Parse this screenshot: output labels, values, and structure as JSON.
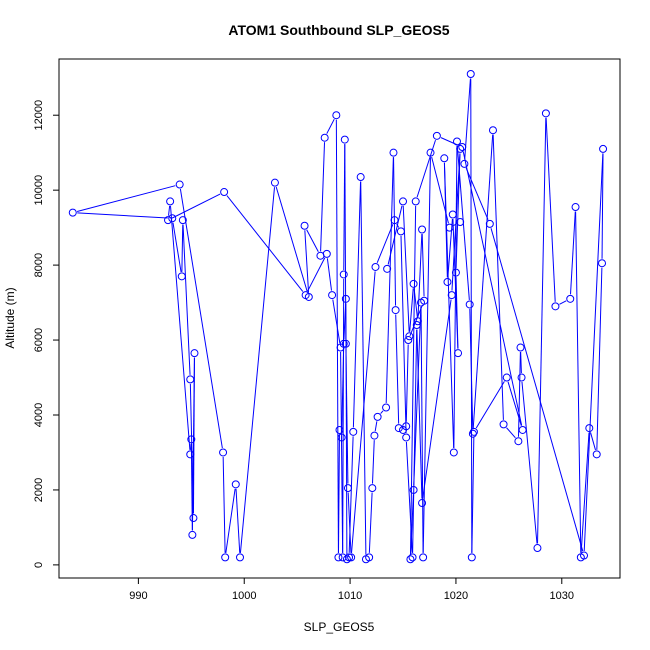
{
  "chart_data": {
    "type": "line",
    "title": "ATOM1 Southbound SLP_GEOS5",
    "xlabel": "SLP_GEOS5",
    "ylabel": "Altitude (m)",
    "xlim": [
      982.5,
      1035.5
    ],
    "ylim": [
      -350,
      13500
    ],
    "xticks": [
      990,
      1000,
      1010,
      1020,
      1030
    ],
    "yticks": [
      0,
      2000,
      4000,
      6000,
      8000,
      10000,
      12000
    ],
    "grid": false,
    "legend": "none",
    "series": [
      {
        "marker": "open-circle",
        "line": true,
        "color": "#0000ff",
        "x": [
          1013.5,
          1015.0,
          1015.6,
          1016.0,
          1016.4,
          1016.8,
          1017.0,
          1015.5,
          1015.3,
          1015.0,
          1014.6,
          1014.3,
          1014.1,
          1013.4,
          1012.6,
          1012.3,
          1012.1,
          1011.8,
          1011.5,
          1011.0,
          1010.3,
          1009.9,
          1009.7,
          1009.6,
          1009.4,
          1009.2,
          1009.0,
          1008.9,
          1008.7,
          1007.6,
          1007.2,
          1005.7,
          1006.1,
          1002.9,
          999.6,
          999.2,
          998.2,
          998.0,
          993.9,
          983.8,
          993.2,
          994.1,
          994.2,
          994.9,
          995.2,
          995.3,
          995.1,
          995.0,
          994.9,
          993.0,
          992.8,
          998.1,
          1005.8,
          1007.8,
          1008.3,
          1009.1,
          1009.3,
          1009.4,
          1009.5,
          1009.6,
          1009.8,
          1010.1,
          1012.4,
          1014.2,
          1014.8,
          1015.3,
          1015.9,
          1016.3,
          1016.8,
          1019.6,
          1020.4,
          1020.0,
          1020.2,
          1019.7,
          1019.2,
          1018.9,
          1019.8,
          1020.1,
          1021.3,
          1021.6,
          1023.5,
          1024.5,
          1025.9,
          1026.1,
          1026.2,
          1027.7,
          1028.5,
          1029.4,
          1030.8,
          1031.3,
          1031.8,
          1032.6,
          1033.3,
          1033.8,
          1033.9,
          1032.1,
          1023.2,
          1020.8,
          1021.4,
          1021.5,
          1021.7,
          1024.8,
          1026.3,
          1020.6,
          1018.2,
          1016.2,
          1015.7,
          1016.0,
          1016.7,
          1016.9,
          1017.6,
          1019.4,
          1020.4
        ],
        "y": [
          7900,
          9700,
          6100,
          7500,
          6500,
          8950,
          7050,
          6000,
          3700,
          3600,
          3650,
          6800,
          11000,
          4200,
          3950,
          3450,
          2050,
          200,
          150,
          10350,
          3550,
          200,
          150,
          7100,
          5900,
          3400,
          3600,
          200,
          12000,
          11400,
          8250,
          9050,
          7150,
          10200,
          200,
          2150,
          200,
          3000,
          10150,
          9400,
          9250,
          7700,
          9200,
          4950,
          1250,
          5650,
          800,
          3350,
          2950,
          9700,
          9200,
          9950,
          7200,
          8300,
          7200,
          5800,
          200,
          7750,
          11350,
          5900,
          2050,
          200,
          7950,
          9200,
          8900,
          3400,
          200,
          6400,
          1650,
          7200,
          11100,
          7800,
          5650,
          9350,
          7550,
          10850,
          3000,
          11300,
          6950,
          3500,
          11600,
          3750,
          3300,
          5800,
          5000,
          450,
          12050,
          6900,
          7100,
          9550,
          200,
          3650,
          2950,
          8050,
          11100,
          250,
          9100,
          10700,
          13100,
          200,
          3550,
          5000,
          3600,
          11150,
          11450,
          9700,
          150,
          2000,
          7000,
          200,
          11000,
          9000,
          9150
        ]
      }
    ]
  }
}
